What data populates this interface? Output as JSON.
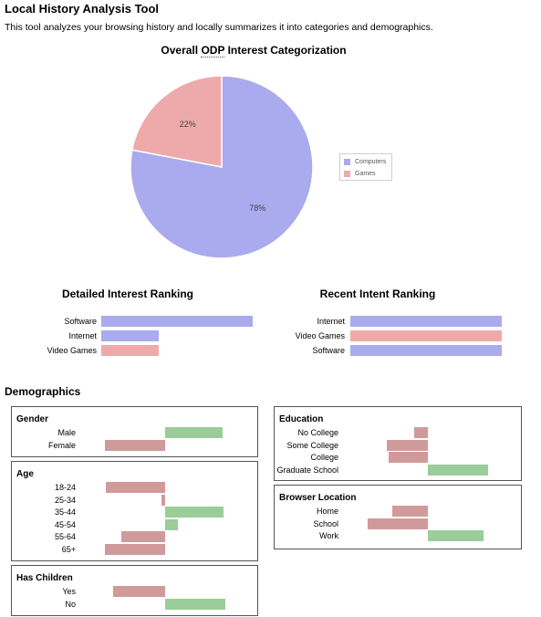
{
  "page": {
    "title": "Local History Analysis Tool",
    "intro": "This tool analyzes your browsing history and locally summarizes it into categories and demographics."
  },
  "pie": {
    "title_prefix": "Overall ",
    "title_abbr": "ODP",
    "title_suffix": " Interest Categorization"
  },
  "chart_data": [
    {
      "type": "pie",
      "title": "Overall ODP Interest Categorization",
      "series": [
        {
          "name": "Computers",
          "value": 78,
          "label": "78%",
          "color": "#aaaaee"
        },
        {
          "name": "Games",
          "value": 22,
          "label": "22%",
          "color": "#eeaaaa"
        }
      ],
      "legend_position": "right"
    },
    {
      "type": "bar",
      "title": "Detailed Interest Ranking",
      "categories": [
        "Software",
        "Internet",
        "Video Games"
      ],
      "values": [
        100,
        38,
        38
      ],
      "colors": [
        "#aaaaee",
        "#aaaaee",
        "#eeaaaa"
      ]
    },
    {
      "type": "bar",
      "title": "Recent Intent Ranking",
      "categories": [
        "Internet",
        "Video Games",
        "Software"
      ],
      "values": [
        100,
        100,
        100
      ],
      "colors": [
        "#aaaaee",
        "#eeaaaa",
        "#aaaaee"
      ]
    }
  ],
  "demographics": {
    "title": "Demographics",
    "colors": {
      "negative": "#d19a9a",
      "positive": "#9acd9a"
    },
    "boxes": {
      "gender": {
        "title": "Gender",
        "items": [
          {
            "label": "Male",
            "value": 63
          },
          {
            "label": "Female",
            "value": -66
          }
        ]
      },
      "age": {
        "title": "Age",
        "items": [
          {
            "label": "18-24",
            "value": -65
          },
          {
            "label": "25-34",
            "value": -4
          },
          {
            "label": "35-44",
            "value": 64
          },
          {
            "label": "45-54",
            "value": 14
          },
          {
            "label": "55-64",
            "value": -48
          },
          {
            "label": "65+",
            "value": -66
          }
        ]
      },
      "children": {
        "title": "Has Children",
        "items": [
          {
            "label": "Yes",
            "value": -57
          },
          {
            "label": "No",
            "value": 66
          }
        ]
      },
      "education": {
        "title": "Education",
        "items": [
          {
            "label": "No College",
            "value": -15
          },
          {
            "label": "Some College",
            "value": -45
          },
          {
            "label": "College",
            "value": -43
          },
          {
            "label": "Graduate School",
            "value": 66
          }
        ]
      },
      "location": {
        "title": "Browser Location",
        "items": [
          {
            "label": "Home",
            "value": -39
          },
          {
            "label": "School",
            "value": -66
          },
          {
            "label": "Work",
            "value": 61
          }
        ]
      }
    }
  }
}
